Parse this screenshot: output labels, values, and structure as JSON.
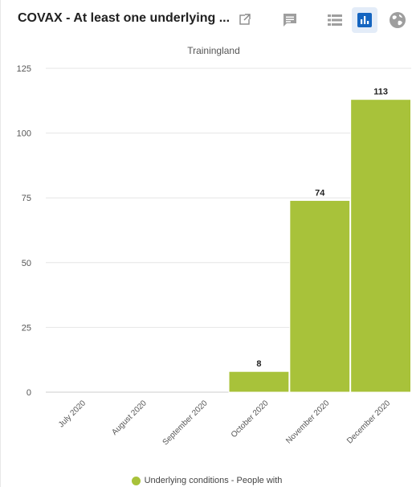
{
  "header": {
    "title": "COVAX - At least one underlying ...",
    "icons": [
      "external-link-icon",
      "interpretation-icon",
      "table-view-icon",
      "chart-view-icon",
      "map-view-icon"
    ]
  },
  "colors": {
    "bar": "#a8c23a",
    "active_button_bg": "#e3ecf8",
    "active_icon": "#1565c0",
    "inactive_icon": "#9e9e9e"
  },
  "chart_data": {
    "type": "bar",
    "subtitle": "Trainingland",
    "categories": [
      "July 2020",
      "August 2020",
      "September 2020",
      "October 2020",
      "November 2020",
      "December 2020"
    ],
    "series": [
      {
        "name": "Underlying conditions - People with",
        "values": [
          0,
          0,
          0,
          8,
          74,
          113
        ]
      }
    ],
    "data_labels": [
      "",
      "",
      "",
      "8",
      "74",
      "113"
    ],
    "yticks": [
      "0",
      "25",
      "50",
      "75",
      "100",
      "125"
    ],
    "ylim": [
      0,
      125
    ],
    "grid": true,
    "legend_position": "bottom-center"
  }
}
